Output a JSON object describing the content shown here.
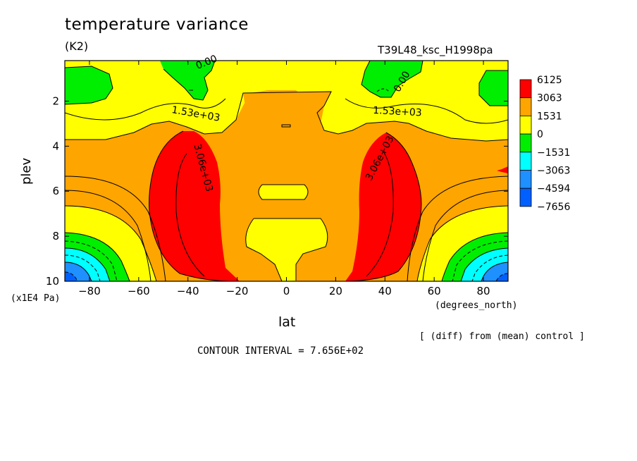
{
  "figure": {
    "title": "temperature variance",
    "units": "(K2)",
    "run_label": "T39L48_ksc_H1998pa",
    "contour_interval_text": "CONTOUR INTERVAL = 7.656E+02",
    "note": "[ (diff) from (mean) control ]"
  },
  "chart_data": {
    "type": "heatmap",
    "title": "temperature variance",
    "xlabel": "lat",
    "ylabel": "plev",
    "x_unit_label": "(degrees_north)",
    "y_unit_label": "(x1E4 Pa)",
    "xlim": [
      -90,
      90
    ],
    "ylim": [
      10,
      0.2
    ],
    "x_ticks": [
      -80,
      -60,
      -40,
      -20,
      0,
      20,
      40,
      60,
      80
    ],
    "x_tick_labels": [
      "-80",
      "-60",
      "-40",
      "-20",
      "0",
      "20",
      "40",
      "60",
      "80"
    ],
    "y_ticks": [
      2,
      4,
      6,
      8,
      10
    ],
    "y_tick_labels": [
      "2",
      "4",
      "6",
      "8",
      "10"
    ],
    "contour_interval": 765.6,
    "colorbar": {
      "labels": [
        "6125",
        "3063",
        "1531",
        "0",
        "-1531",
        "-3063",
        "-4594",
        "-7656"
      ],
      "colors": [
        "#ff0000",
        "#ffa500",
        "#ffff00",
        "#00ee00",
        "#00ffff",
        "#1e90ff",
        "#0060ff"
      ]
    },
    "contour_labels": [
      {
        "text": "0.00",
        "lat": -32,
        "plev": 0.4
      },
      {
        "text": "0.00",
        "lat": 48,
        "plev": 1.2
      },
      {
        "text": "1.53e+03",
        "lat": -37,
        "plev": 2.7
      },
      {
        "text": "1.53e+03",
        "lat": 45,
        "plev": 2.6
      },
      {
        "text": "3.06e+03",
        "lat": -35,
        "plev": 5.0
      },
      {
        "text": "3.06e+03",
        "lat": 39,
        "plev": 4.6
      }
    ]
  }
}
